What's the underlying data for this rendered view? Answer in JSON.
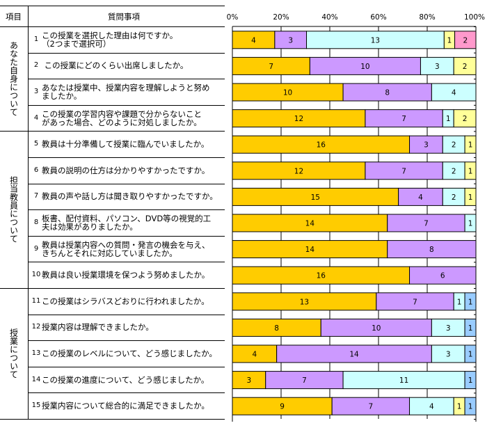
{
  "header": {
    "category_col": "項目",
    "question_col": "質問事項"
  },
  "categories": [
    {
      "label": "あなた自身について",
      "rows": [
        0,
        3
      ]
    },
    {
      "label": "担当教員について",
      "rows": [
        4,
        9
      ]
    },
    {
      "label": "授業について",
      "rows": [
        10,
        14
      ]
    }
  ],
  "questions": [
    {
      "num": "1",
      "text": "この授業を選択した理由は何ですか。\n（2つまで選択可）"
    },
    {
      "num": "2",
      "text": " この授業にどのくらい出席しましたか。"
    },
    {
      "num": "3",
      "text": "あなたは授業中、授業内容を理解しようと努め\nましたか。"
    },
    {
      "num": "4",
      "text": "この授業の学習内容や課題で分からないこと\nがあった場合、どのように対処しましたか。"
    },
    {
      "num": "5",
      "text": "教員は十分準備して授業に臨んでいましたか。"
    },
    {
      "num": "6",
      "text": "教員の説明の仕方は分かりやすかったですか。"
    },
    {
      "num": "7",
      "text": "教員の声や話し方は聞き取りやすかったですか。"
    },
    {
      "num": "8",
      "text": "板書、配付資料、パソコン、DVD等の視覚的工\n夫は効果がありましたか。"
    },
    {
      "num": "9",
      "text": "教員は授業内容への質問・発言の機会を与え、\nきちんとそれに対応していましたか。"
    },
    {
      "num": "10",
      "text": "教員は良い授業環境を保つよう努めましたか。"
    },
    {
      "num": "11",
      "text": "この授業はシラバスどおりに行われましたか。"
    },
    {
      "num": "12",
      "text": "授業内容は理解できましたか。"
    },
    {
      "num": "13",
      "text": "この授業のレベルについて、どう感じましたか。"
    },
    {
      "num": "14",
      "text": "この授業の進度について、どう感じましたか。"
    },
    {
      "num": "15",
      "text": "授業内容について総合的に満足できましたか。"
    }
  ],
  "chart_data": {
    "type": "bar",
    "orientation": "horizontal",
    "stacked": "percent",
    "xlim": [
      0,
      100
    ],
    "xticks": [
      "0%",
      "20%",
      "40%",
      "60%",
      "80%",
      "100%"
    ],
    "grid": true,
    "colors": {
      "orange": "#FFCC00",
      "purple": "#CC99FF",
      "cyan": "#CCFFFF",
      "yellow": "#FFFF99",
      "pink": "#FF99CC",
      "blue": "#99CCFF"
    },
    "bars": [
      [
        {
          "v": 4,
          "c": "orange"
        },
        {
          "v": 3,
          "c": "purple"
        },
        {
          "v": 13,
          "c": "cyan"
        },
        {
          "v": 1,
          "c": "yellow"
        },
        {
          "v": 2,
          "c": "pink"
        }
      ],
      [
        {
          "v": 7,
          "c": "orange"
        },
        {
          "v": 10,
          "c": "purple"
        },
        {
          "v": 3,
          "c": "cyan"
        },
        {
          "v": 2,
          "c": "yellow"
        }
      ],
      [
        {
          "v": 10,
          "c": "orange"
        },
        {
          "v": 8,
          "c": "purple"
        },
        {
          "v": 4,
          "c": "cyan"
        }
      ],
      [
        {
          "v": 12,
          "c": "orange"
        },
        {
          "v": 7,
          "c": "purple"
        },
        {
          "v": 1,
          "c": "cyan"
        },
        {
          "v": 2,
          "c": "yellow"
        }
      ],
      [
        {
          "v": 16,
          "c": "orange"
        },
        {
          "v": 3,
          "c": "purple"
        },
        {
          "v": 2,
          "c": "cyan"
        },
        {
          "v": 1,
          "c": "yellow"
        }
      ],
      [
        {
          "v": 12,
          "c": "orange"
        },
        {
          "v": 7,
          "c": "purple"
        },
        {
          "v": 2,
          "c": "cyan"
        },
        {
          "v": 1,
          "c": "yellow"
        }
      ],
      [
        {
          "v": 15,
          "c": "orange"
        },
        {
          "v": 4,
          "c": "purple"
        },
        {
          "v": 2,
          "c": "cyan"
        },
        {
          "v": 1,
          "c": "yellow"
        }
      ],
      [
        {
          "v": 14,
          "c": "orange"
        },
        {
          "v": 7,
          "c": "purple"
        },
        {
          "v": 1,
          "c": "cyan"
        }
      ],
      [
        {
          "v": 14,
          "c": "orange"
        },
        {
          "v": 8,
          "c": "purple"
        }
      ],
      [
        {
          "v": 16,
          "c": "orange"
        },
        {
          "v": 6,
          "c": "purple"
        }
      ],
      [
        {
          "v": 13,
          "c": "orange"
        },
        {
          "v": 7,
          "c": "purple"
        },
        {
          "v": 1,
          "c": "cyan"
        },
        {
          "v": 1,
          "c": "blue"
        }
      ],
      [
        {
          "v": 8,
          "c": "orange"
        },
        {
          "v": 10,
          "c": "purple"
        },
        {
          "v": 3,
          "c": "cyan"
        },
        {
          "v": 1,
          "c": "blue"
        }
      ],
      [
        {
          "v": 4,
          "c": "orange"
        },
        {
          "v": 14,
          "c": "purple"
        },
        {
          "v": 3,
          "c": "cyan"
        },
        {
          "v": 1,
          "c": "blue"
        }
      ],
      [
        {
          "v": 3,
          "c": "orange"
        },
        {
          "v": 7,
          "c": "purple"
        },
        {
          "v": 11,
          "c": "cyan"
        },
        {
          "v": 1,
          "c": "blue"
        }
      ],
      [
        {
          "v": 9,
          "c": "orange"
        },
        {
          "v": 7,
          "c": "purple"
        },
        {
          "v": 4,
          "c": "cyan"
        },
        {
          "v": 1,
          "c": "yellow"
        },
        {
          "v": 1,
          "c": "blue"
        }
      ]
    ]
  }
}
